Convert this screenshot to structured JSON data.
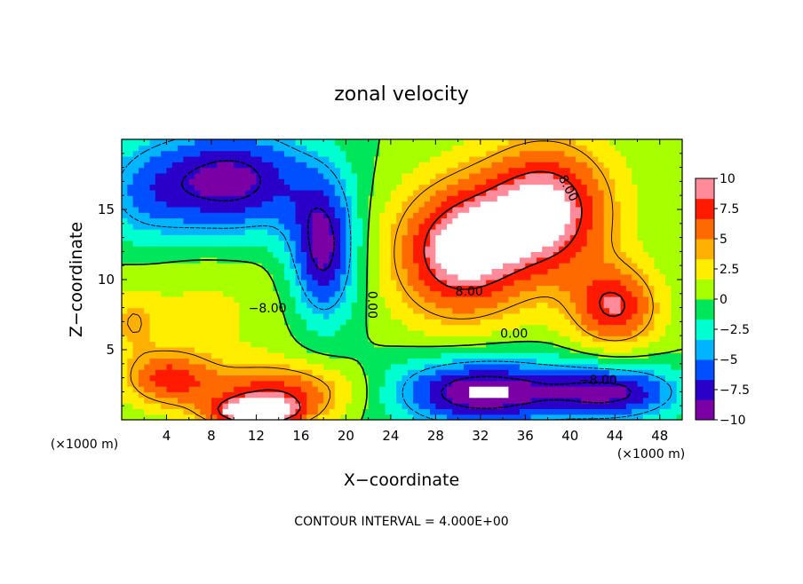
{
  "chart_data": {
    "type": "heatmap",
    "title": "zonal velocity",
    "xlabel": "X−coordinate",
    "ylabel": "Z−coordinate",
    "x_unit_label": "(×1000 m)",
    "x_unit_label_right": "(×1000 m)",
    "footnote": "CONTOUR INTERVAL = 4.000E+00",
    "xlim": [
      0,
      50
    ],
    "ylim": [
      0,
      20
    ],
    "xticks": [
      {
        "value": 4,
        "label": "4"
      },
      {
        "value": 8,
        "label": "8"
      },
      {
        "value": 12,
        "label": "12"
      },
      {
        "value": 16,
        "label": "16"
      },
      {
        "value": 20,
        "label": "20"
      },
      {
        "value": 24,
        "label": "24"
      },
      {
        "value": 28,
        "label": "28"
      },
      {
        "value": 32,
        "label": "32"
      },
      {
        "value": 36,
        "label": "36"
      },
      {
        "value": 40,
        "label": "40"
      },
      {
        "value": 44,
        "label": "44"
      },
      {
        "value": 48,
        "label": "48"
      }
    ],
    "yticks": [
      {
        "value": 5,
        "label": "5"
      },
      {
        "value": 10,
        "label": "10"
      },
      {
        "value": 15,
        "label": "15"
      }
    ],
    "colorbar": {
      "min": -10,
      "max": 10,
      "ticks": [
        {
          "value": 10,
          "label": "10"
        },
        {
          "value": 7.5,
          "label": "7.5"
        },
        {
          "value": 5,
          "label": "5"
        },
        {
          "value": 2.5,
          "label": "2.5"
        },
        {
          "value": 0,
          "label": "0"
        },
        {
          "value": -2.5,
          "label": "−2.5"
        },
        {
          "value": -5,
          "label": "−5"
        },
        {
          "value": -7.5,
          "label": "−7.5"
        },
        {
          "value": -10,
          "label": "−10"
        }
      ],
      "colors": [
        "#7a00a6",
        "#2a00c8",
        "#0050ff",
        "#00b4ff",
        "#00ffd0",
        "#00e65a",
        "#a8ff00",
        "#ffee00",
        "#ffb000",
        "#ff6a00",
        "#ff1a00",
        "#ff8a9a"
      ]
    },
    "contour_interval": 4.0,
    "contour_labels": [
      {
        "x": 13.0,
        "y": 7.9,
        "label": "−8.00",
        "rotate": 0
      },
      {
        "x": 22.3,
        "y": 8.2,
        "label": "0.00",
        "rotate": 90
      },
      {
        "x": 31.0,
        "y": 9.1,
        "label": "8.00",
        "rotate": 0
      },
      {
        "x": 35.0,
        "y": 6.1,
        "label": "0.00",
        "rotate": 0
      },
      {
        "x": 39.8,
        "y": 16.5,
        "label": "8.00",
        "rotate": 62
      },
      {
        "x": 42.5,
        "y": 2.8,
        "label": "−8.00",
        "rotate": 0
      }
    ],
    "blobs": [
      {
        "x": 10,
        "y": 17,
        "value": -9,
        "rx": 7,
        "ry": 4
      },
      {
        "x": 18,
        "y": 12,
        "value": -9,
        "rx": 3,
        "ry": 5
      },
      {
        "x": 7,
        "y": 8,
        "value": 2,
        "rx": 9,
        "ry": 6
      },
      {
        "x": 4,
        "y": 3,
        "value": 6,
        "rx": 4,
        "ry": 2
      },
      {
        "x": 14,
        "y": 2,
        "value": 7,
        "rx": 7,
        "ry": 2
      },
      {
        "x": 12,
        "y": 0.5,
        "value": 10,
        "rx": 4,
        "ry": 1
      },
      {
        "x": 30,
        "y": 12,
        "value": 10,
        "rx": 6,
        "ry": 5
      },
      {
        "x": 38,
        "y": 15,
        "value": 10,
        "rx": 6,
        "ry": 5
      },
      {
        "x": 44,
        "y": 8,
        "value": 8,
        "rx": 4,
        "ry": 3
      },
      {
        "x": 32,
        "y": 2,
        "value": -10,
        "rx": 8,
        "ry": 2.5
      },
      {
        "x": 44,
        "y": 2,
        "value": -8,
        "rx": 6,
        "ry": 2
      },
      {
        "x": 22,
        "y": 3,
        "value": 0,
        "rx": 1.5,
        "ry": 3
      },
      {
        "x": 1,
        "y": 7,
        "value": 3,
        "rx": 2,
        "ry": 2
      },
      {
        "x": 2,
        "y": 16,
        "value": -4,
        "rx": 5,
        "ry": 4
      }
    ]
  }
}
